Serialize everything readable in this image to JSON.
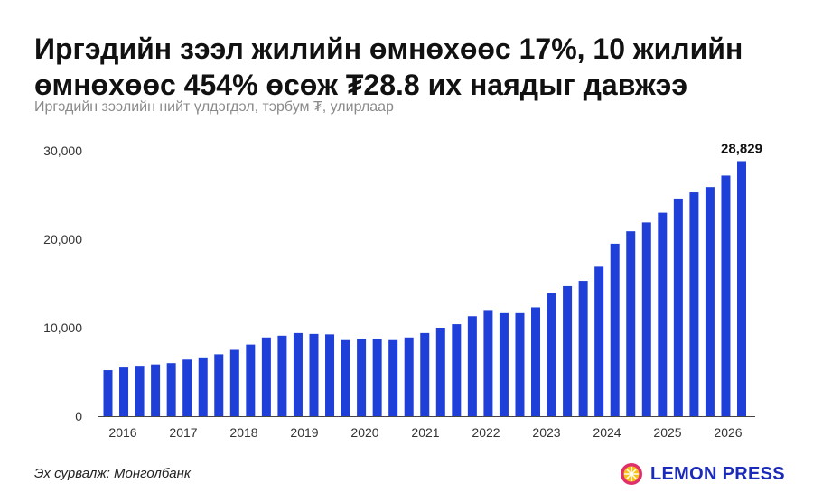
{
  "header": {
    "title": "Иргэдийн зээл жилийн өмнөхөөс 17%, 10 жилийн өмнөхөөс 454% өсөж ₮28.8 их наядыг давжээ",
    "subtitle": "Иргэдийн зээлийн нийт үлдэгдэл, тэрбум ₮, улирлаар"
  },
  "footer": {
    "source": "Эх сурвалж: Монголбанк",
    "brand": "LEMON PRESS"
  },
  "colors": {
    "bar": "#1e3fd8",
    "brand": "#1b2ab8",
    "logo_accent": "#f5c419",
    "logo_ring": "#e0306b"
  },
  "chart_data": {
    "type": "bar",
    "title": "Иргэдийн зээл жилийн өмнөхөөс 17%, 10 жилийн өмнөхөөс 454% өсөж ₮28.8 их наядыг давжээ",
    "subtitle": "Иргэдийн зээлийн нийт үлдэгдэл, тэрбум ₮, улирлаар",
    "xlabel": "",
    "ylabel": "",
    "ylim": [
      0,
      30000
    ],
    "yticks": [
      0,
      10000,
      20000,
      30000
    ],
    "ytick_labels": [
      "0",
      "10,000",
      "20,000",
      "30,000"
    ],
    "xtick_labels": [
      "2016",
      "2017",
      "2018",
      "2019",
      "2020",
      "2021",
      "2022",
      "2023",
      "2024",
      "2025",
      "2026"
    ],
    "grid": false,
    "annotation": {
      "text": "28,829",
      "value": 28829
    },
    "values": [
      5200,
      5500,
      5700,
      5850,
      6000,
      6400,
      6650,
      7000,
      7500,
      8100,
      8900,
      9100,
      9400,
      9300,
      9250,
      8600,
      8750,
      8750,
      8600,
      8900,
      9400,
      10000,
      10400,
      11300,
      12000,
      11650,
      11650,
      12300,
      13900,
      14700,
      15300,
      16900,
      19500,
      20900,
      21900,
      23000,
      24600,
      25300,
      25900,
      27200,
      28829
    ]
  }
}
